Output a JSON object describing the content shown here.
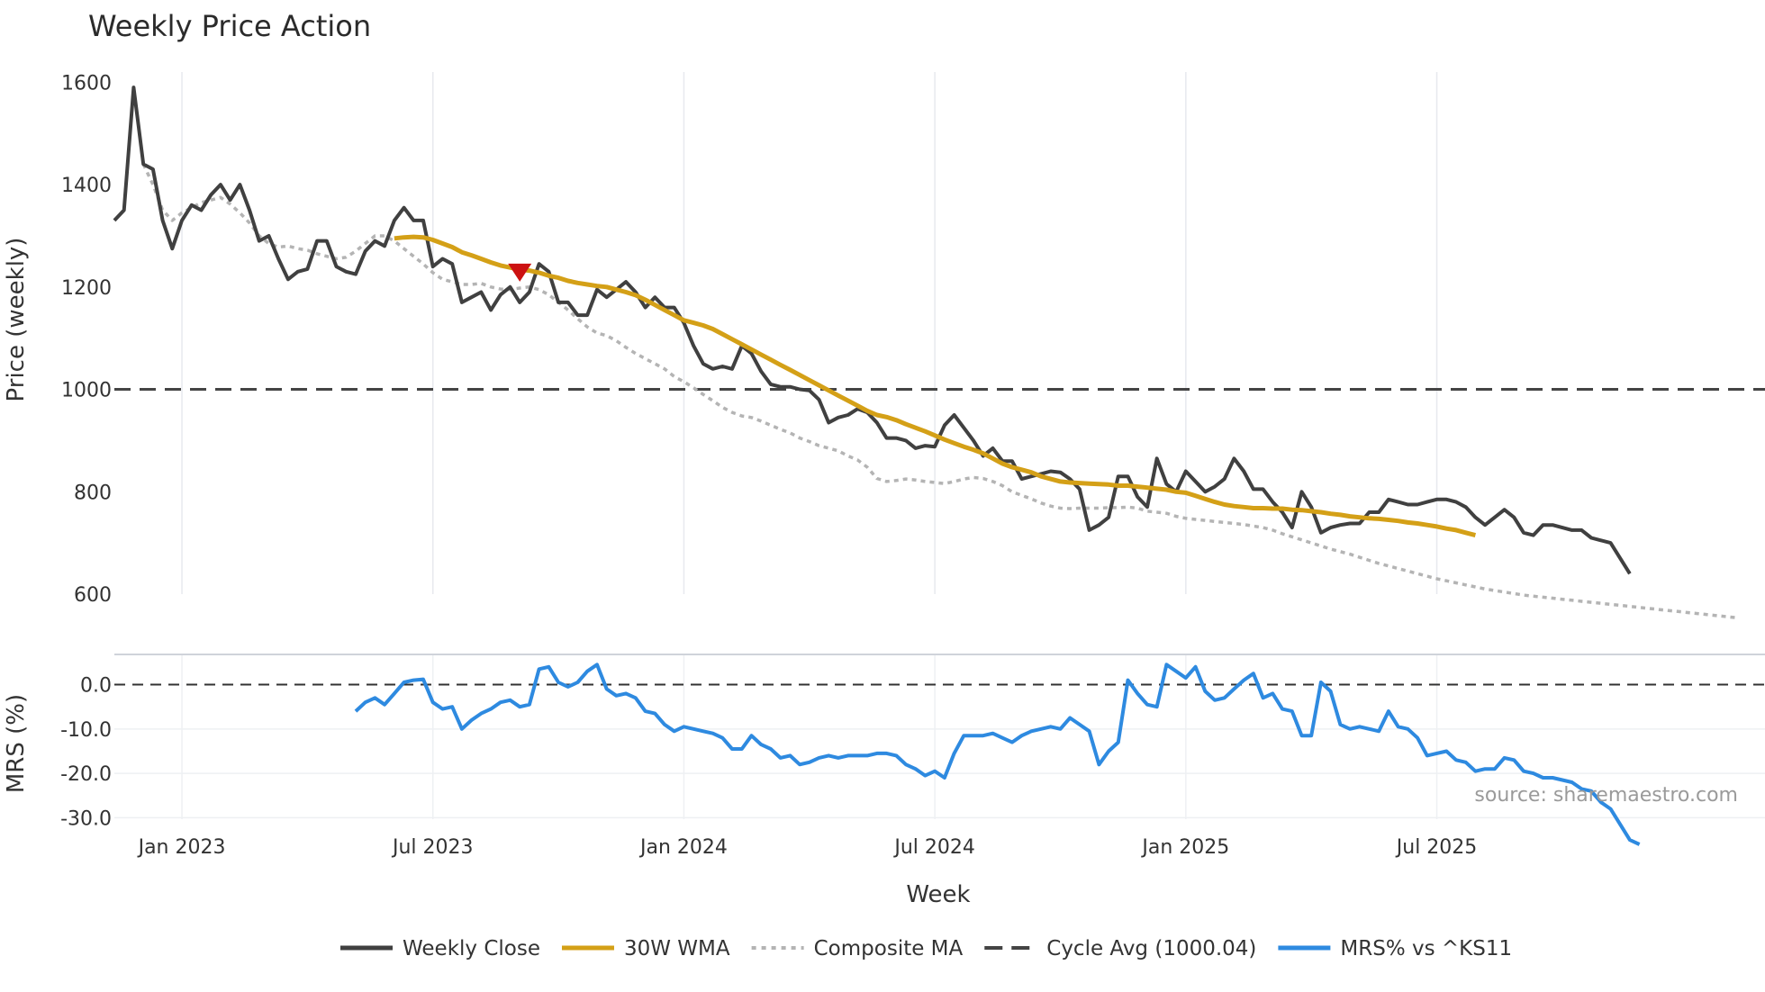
{
  "chart_data": {
    "type": "line",
    "title": "Weekly Price Action",
    "xlabel": "Week",
    "source": "source: sharemaestro.com",
    "x_tick_labels": [
      "Jan 2023",
      "Jul 2023",
      "Jan 2024",
      "Jul 2024",
      "Jan 2025",
      "Jul 2025"
    ],
    "x_tick_weeks": [
      3,
      29,
      55,
      81,
      107,
      133
    ],
    "price_panel": {
      "ylabel": "Price (weekly)",
      "ylim": [
        600,
        1620
      ],
      "yticks": [
        600,
        800,
        1000,
        1200,
        1400,
        1600
      ],
      "ytick_labels": [
        "600",
        "800",
        "1000",
        "1200",
        "1400",
        "1600"
      ],
      "cycle_avg": 1000.04,
      "signal_marker": {
        "week": 38,
        "value": 1228,
        "color": "#cc1111"
      },
      "series": [
        {
          "name": "Weekly Close",
          "color": "#404040",
          "start_week": -4,
          "values": [
            1330,
            1350,
            1590,
            1440,
            1430,
            1330,
            1275,
            1330,
            1360,
            1350,
            1380,
            1400,
            1370,
            1400,
            1350,
            1290,
            1300,
            1255,
            1215,
            1230,
            1235,
            1290,
            1290,
            1240,
            1230,
            1225,
            1270,
            1290,
            1280,
            1330,
            1355,
            1330,
            1330,
            1240,
            1255,
            1245,
            1170,
            1180,
            1190,
            1155,
            1185,
            1200,
            1170,
            1190,
            1245,
            1230,
            1170,
            1170,
            1145,
            1145,
            1195,
            1180,
            1195,
            1210,
            1190,
            1160,
            1180,
            1160,
            1160,
            1130,
            1085,
            1050,
            1040,
            1045,
            1040,
            1085,
            1070,
            1035,
            1010,
            1005,
            1005,
            1000,
            998,
            980,
            935,
            945,
            950,
            962,
            955,
            935,
            905,
            905,
            900,
            885,
            890,
            888,
            930,
            950,
            925,
            900,
            870,
            885,
            860,
            860,
            825,
            830,
            835,
            840,
            838,
            825,
            805,
            725,
            735,
            750,
            830,
            830,
            790,
            770,
            865,
            815,
            800,
            840,
            820,
            800,
            810,
            825,
            865,
            840,
            805,
            805,
            780,
            760,
            730,
            800,
            770,
            720,
            730,
            735,
            738,
            738,
            760,
            760,
            785,
            780,
            775,
            775,
            780,
            785,
            785,
            780,
            770,
            750,
            735,
            750,
            765,
            750,
            720,
            715,
            735,
            735,
            730,
            725,
            725,
            710,
            705,
            700,
            670,
            640
          ]
        },
        {
          "name": "30W WMA",
          "color": "#d4a017",
          "start_week": 25,
          "values": [
            1295,
            1297,
            1298,
            1297,
            1292,
            1285,
            1278,
            1268,
            1262,
            1255,
            1248,
            1242,
            1238,
            1234,
            1232,
            1228,
            1222,
            1218,
            1212,
            1208,
            1205,
            1202,
            1200,
            1195,
            1190,
            1184,
            1175,
            1165,
            1155,
            1145,
            1135,
            1130,
            1125,
            1118,
            1108,
            1098,
            1088,
            1078,
            1068,
            1058,
            1048,
            1038,
            1028,
            1018,
            1008,
            998,
            988,
            978,
            968,
            958,
            950,
            946,
            940,
            932,
            925,
            918,
            910,
            902,
            895,
            888,
            882,
            875,
            865,
            855,
            848,
            843,
            838,
            830,
            825,
            820,
            818,
            817,
            816,
            815,
            814,
            812,
            812,
            810,
            808,
            806,
            804,
            800,
            798,
            792,
            786,
            780,
            775,
            772,
            770,
            768,
            768,
            767,
            767,
            765,
            764,
            762,
            760,
            757,
            755,
            752,
            750,
            748,
            747,
            745,
            743,
            740,
            738,
            735,
            732,
            728,
            725,
            720,
            715
          ]
        },
        {
          "name": "Composite MA",
          "color": "#b4b4b4",
          "dashed": "dot",
          "start_week": -1,
          "values": [
            1440,
            1400,
            1350,
            1330,
            1345,
            1355,
            1365,
            1370,
            1375,
            1362,
            1345,
            1325,
            1300,
            1285,
            1278,
            1280,
            1275,
            1272,
            1265,
            1260,
            1255,
            1258,
            1270,
            1285,
            1300,
            1300,
            1290,
            1275,
            1260,
            1245,
            1228,
            1215,
            1210,
            1205,
            1205,
            1207,
            1200,
            1196,
            1195,
            1198,
            1200,
            1195,
            1185,
            1170,
            1155,
            1138,
            1122,
            1110,
            1105,
            1095,
            1082,
            1070,
            1060,
            1050,
            1040,
            1025,
            1015,
            1003,
            990,
            978,
            965,
            955,
            948,
            945,
            938,
            930,
            922,
            915,
            905,
            898,
            890,
            885,
            880,
            870,
            862,
            848,
            826,
            820,
            822,
            825,
            823,
            820,
            818,
            816,
            820,
            825,
            828,
            826,
            820,
            812,
            800,
            793,
            786,
            778,
            772,
            768,
            767,
            768,
            768,
            768,
            769,
            769,
            770,
            768,
            762,
            760,
            758,
            752,
            748,
            746,
            744,
            742,
            740,
            738,
            736,
            733,
            730,
            725,
            718,
            712,
            706,
            700,
            694,
            688,
            683,
            678,
            672,
            666,
            660,
            655,
            650,
            645,
            640,
            635,
            630,
            626,
            622,
            618,
            614,
            610,
            607,
            604,
            601,
            598,
            596,
            594,
            592,
            590,
            588,
            586,
            584,
            582,
            580,
            578,
            576,
            574,
            572,
            570,
            568,
            566,
            564,
            562,
            560,
            558,
            556,
            554
          ]
        },
        {
          "name": "Cycle Avg (1000.04)",
          "color": "#444444",
          "dashed": "dash",
          "values": [
            1000.04
          ]
        }
      ]
    },
    "mrs_panel": {
      "ylabel": "MRS (%)",
      "ylim": [
        -36,
        7
      ],
      "yticks": [
        0,
        -10,
        -20,
        -30
      ],
      "ytick_labels": [
        "0.0",
        "-10.0",
        "-20.0",
        "-30.0"
      ],
      "series": [
        {
          "name": "MRS% vs ^KS11",
          "color": "#2e8ae0",
          "start_week": 21,
          "values": [
            -6,
            -4,
            -3,
            -4.5,
            -2,
            0.5,
            1,
            1.2,
            -4,
            -5.5,
            -5,
            -10,
            -8,
            -6.5,
            -5.5,
            -4,
            -3.5,
            -5,
            -4.5,
            3.5,
            4,
            0.5,
            -0.5,
            0.5,
            3,
            4.5,
            -1,
            -2.5,
            -2,
            -3,
            -6,
            -6.5,
            -9,
            -10.5,
            -9.5,
            -10,
            -10.5,
            -11,
            -12,
            -14.5,
            -14.5,
            -11.5,
            -13.5,
            -14.5,
            -16.5,
            -16,
            -18,
            -17.5,
            -16.5,
            -16,
            -16.5,
            -16,
            -16,
            -16,
            -15.5,
            -15.5,
            -16,
            -18,
            -19,
            -20.5,
            -19.5,
            -21,
            -15.5,
            -11.5,
            -11.5,
            -11.5,
            -11,
            -12,
            -13,
            -11.5,
            -10.5,
            -10,
            -9.5,
            -10,
            -7.5,
            -9,
            -10.5,
            -18,
            -15,
            -13,
            1,
            -2,
            -4.5,
            -5,
            4.5,
            3,
            1.5,
            4,
            -1.5,
            -3.5,
            -3,
            -1,
            1,
            2.5,
            -3,
            -2,
            -5.5,
            -6,
            -11.5,
            -11.5,
            0.5,
            -1.5,
            -9,
            -10,
            -9.5,
            -10,
            -10.5,
            -6,
            -9.5,
            -10,
            -12,
            -16,
            -15.5,
            -15,
            -17,
            -17.5,
            -19.5,
            -19,
            -19,
            -16.5,
            -17,
            -19.5,
            -20,
            -21,
            -21,
            -21.5,
            -22,
            -23.5,
            -24,
            -26.5,
            -28,
            -31.5,
            -35,
            -36
          ]
        }
      ]
    },
    "legend": {
      "placement": "bottom-center",
      "entries": [
        {
          "label": "Weekly Close",
          "color": "#404040",
          "style": "solid"
        },
        {
          "label": "30W WMA",
          "color": "#d4a017",
          "style": "solid"
        },
        {
          "label": "Composite MA",
          "color": "#b4b4b4",
          "style": "dot"
        },
        {
          "label": "Cycle Avg (1000.04)",
          "color": "#444444",
          "style": "dash"
        },
        {
          "label": "MRS% vs ^KS11",
          "color": "#2e8ae0",
          "style": "solid"
        }
      ]
    }
  }
}
